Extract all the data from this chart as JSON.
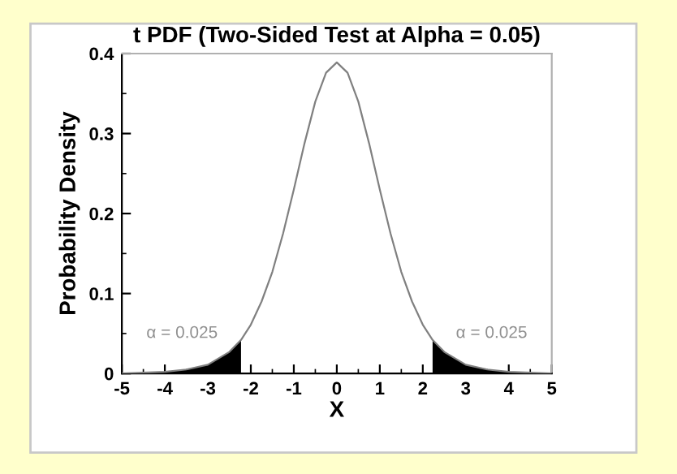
{
  "chart_data": {
    "type": "line",
    "title": "t PDF (Two-Sided Test at Alpha = 0.05)",
    "xlabel": "X",
    "ylabel": "Probability Density",
    "series": [
      {
        "color": "#808080",
        "x": [
          -5,
          -4.5,
          -4,
          -3.5,
          -3,
          -2.5,
          -2.228,
          -2,
          -1.75,
          -1.5,
          -1.25,
          -1,
          -0.75,
          -0.5,
          -0.25,
          0,
          0.25,
          0.5,
          0.75,
          1,
          1.25,
          1.5,
          1.75,
          2,
          2.228,
          2.5,
          3,
          3.5,
          4,
          4.5,
          5
        ],
        "values": [
          0.0,
          0.001,
          0.002,
          0.005,
          0.011,
          0.027,
          0.042,
          0.061,
          0.09,
          0.127,
          0.175,
          0.23,
          0.288,
          0.34,
          0.376,
          0.389,
          0.376,
          0.34,
          0.288,
          0.23,
          0.175,
          0.127,
          0.09,
          0.061,
          0.042,
          0.027,
          0.011,
          0.005,
          0.002,
          0.001,
          0.0
        ]
      },
      {
        "type": "area",
        "color": "#000000",
        "x": [
          -5,
          -4.5,
          -4,
          -3.5,
          -3,
          -2.5,
          -2.228
        ],
        "values": [
          0.0,
          0.001,
          0.002,
          0.005,
          0.011,
          0.027,
          0.042
        ]
      },
      {
        "type": "area",
        "color": "#000000",
        "x": [
          2.228,
          2.5,
          3,
          3.5,
          4,
          4.5,
          5
        ],
        "values": [
          0.042,
          0.027,
          0.011,
          0.005,
          0.002,
          0.001,
          0.0
        ]
      }
    ],
    "annotations": [
      "α = 0.025",
      "α = 0.025"
    ],
    "xlim": [
      -5,
      5
    ],
    "xticks": [
      -5,
      -4,
      -3,
      -2,
      -1,
      0,
      1,
      2,
      3,
      4,
      5
    ],
    "ylim": [
      0,
      0.4
    ],
    "yticks": [
      0,
      0.1,
      0.2,
      0.3,
      0.4
    ],
    "grid": false,
    "legend": false
  }
}
